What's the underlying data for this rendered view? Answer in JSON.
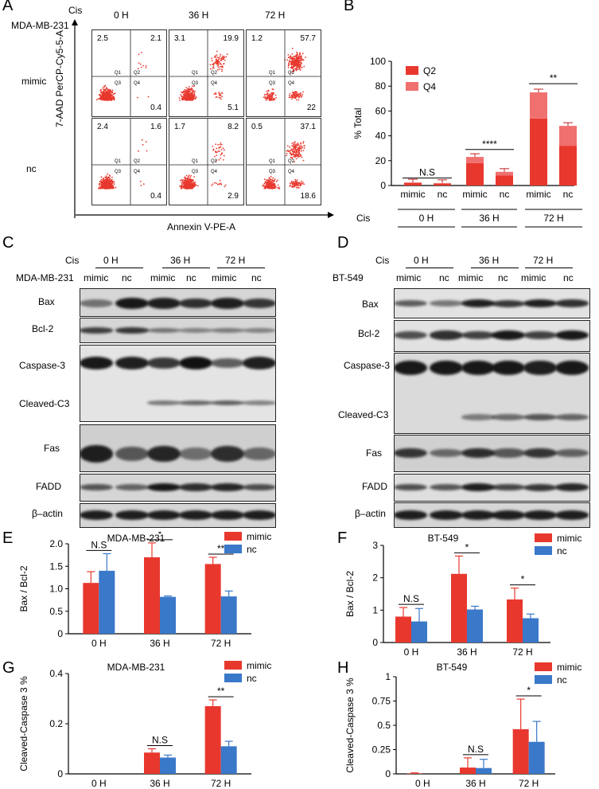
{
  "panelA": {
    "letter": "A",
    "cell_line": "MDA-MB-231",
    "cis_label": "Cis",
    "times": [
      "0 H",
      "36 H",
      "72 H"
    ],
    "rows": [
      "mimic",
      "nc"
    ],
    "y_axis_label": "7-AAD PerCP-Cy5-5-A",
    "x_axis_label": "Annexin V-PE-A",
    "quadrant_labels": [
      "Q1",
      "Q2",
      "Q3",
      "Q4"
    ],
    "quadrant_values": [
      [
        [
          "2.5",
          "2.1",
          "0.4"
        ],
        [
          "3.1",
          "19.9",
          "5.1"
        ],
        [
          "1.2",
          "57.7",
          "22"
        ]
      ],
      [
        [
          "2.4",
          "1.6",
          "0.4"
        ],
        [
          "1.7",
          "8.2",
          "2.9"
        ],
        [
          "0.5",
          "37.1",
          "18.6"
        ]
      ]
    ],
    "dot_color": "#e8382e"
  },
  "panelB": {
    "letter": "B",
    "chart_data": {
      "type": "bar",
      "stacked": true,
      "categories": [
        "mimic",
        "nc",
        "mimic",
        "nc",
        "mimic",
        "nc"
      ],
      "groups": [
        "0 H",
        "36 H",
        "72 H"
      ],
      "group_axis_label": "Cis",
      "ylabel": "% Total",
      "ylim": [
        0,
        100
      ],
      "yticks": [
        0,
        20,
        40,
        60,
        80,
        100
      ],
      "series": [
        {
          "name": "Q2",
          "values": [
            2,
            1.5,
            18,
            8,
            54,
            32
          ],
          "color": "#e8382e"
        },
        {
          "name": "Q4",
          "values": [
            0.5,
            0.5,
            5,
            3,
            21,
            16
          ],
          "color": "#f07070"
        }
      ],
      "significance": [
        "N.S",
        "****",
        "**"
      ]
    }
  },
  "panelC": {
    "letter": "C",
    "cis_label": "Cis",
    "cell_line": "MDA-MB-231",
    "times": [
      "0 H",
      "36 H",
      "72 H"
    ],
    "lanes": [
      "mimic",
      "nc",
      "mimic",
      "nc",
      "mimic",
      "nc"
    ],
    "blots": [
      "Bax",
      "Bcl-2",
      "Caspase-3",
      "Cleaved-C3",
      "Fas",
      "FADD",
      "β–actin"
    ]
  },
  "panelD": {
    "letter": "D",
    "cis_label": "Cis",
    "cell_line": "BT-549",
    "times": [
      "0 H",
      "36 H",
      "72 H"
    ],
    "lanes": [
      "mimic",
      "nc",
      "mimic",
      "nc",
      "mimic",
      "nc"
    ],
    "blots": [
      "Bax",
      "Bcl-2",
      "Caspase-3",
      "Cleaved-C3",
      "Fas",
      "FADD",
      "β–actin"
    ]
  },
  "panelE": {
    "letter": "E",
    "chart_data": {
      "type": "bar",
      "title": "MDA-MB-231",
      "categories": [
        "0 H",
        "36 H",
        "72 H"
      ],
      "ylabel": "Bax / Bcl-2",
      "ylim": [
        0,
        2.0
      ],
      "yticks": [
        "0",
        "0.5",
        "1.0",
        "1.5",
        "2.0"
      ],
      "series": [
        {
          "name": "mimic",
          "values": [
            1.13,
            1.7,
            1.55
          ],
          "errors": [
            0.25,
            0.32,
            0.15
          ],
          "color": "#e8382e"
        },
        {
          "name": "nc",
          "values": [
            1.4,
            0.82,
            0.83
          ],
          "errors": [
            0.38,
            0.02,
            0.12
          ],
          "color": "#3a78c9"
        }
      ],
      "significance": [
        "N.S",
        "*",
        "**"
      ]
    }
  },
  "panelF": {
    "letter": "F",
    "chart_data": {
      "type": "bar",
      "title": "BT-549",
      "categories": [
        "0 H",
        "36 H",
        "72 H"
      ],
      "ylabel": "Bax / Bcl-2",
      "ylim": [
        0,
        3
      ],
      "yticks": [
        "0",
        "1",
        "2",
        "3"
      ],
      "series": [
        {
          "name": "mimic",
          "values": [
            0.8,
            2.12,
            1.33
          ],
          "errors": [
            0.28,
            0.55,
            0.35
          ],
          "color": "#e8382e"
        },
        {
          "name": "nc",
          "values": [
            0.65,
            1.02,
            0.75
          ],
          "errors": [
            0.4,
            0.1,
            0.13
          ],
          "color": "#3a78c9"
        }
      ],
      "significance": [
        "N.S",
        "*",
        "*"
      ]
    }
  },
  "panelG": {
    "letter": "G",
    "chart_data": {
      "type": "bar",
      "title": "MDA-MB-231",
      "categories": [
        "0 H",
        "36 H",
        "72 H"
      ],
      "ylabel": "Cleaved-Caspase 3 %",
      "ylim": [
        0,
        0.4
      ],
      "yticks": [
        "0",
        "0.2",
        "0.4"
      ],
      "series": [
        {
          "name": "mimic",
          "values": [
            0,
            0.085,
            0.27
          ],
          "errors": [
            0,
            0.015,
            0.025
          ],
          "color": "#e8382e"
        },
        {
          "name": "nc",
          "values": [
            0,
            0.065,
            0.11
          ],
          "errors": [
            0,
            0.01,
            0.02
          ],
          "color": "#3a78c9"
        }
      ],
      "significance": [
        "",
        "N.S",
        "**"
      ]
    }
  },
  "panelH": {
    "letter": "H",
    "chart_data": {
      "type": "bar",
      "title": "BT-549",
      "categories": [
        "0 H",
        "36 H",
        "72 H"
      ],
      "ylabel": "Cleaved-Caspase 3 %",
      "ylim": [
        0,
        1
      ],
      "yticks": [
        "0",
        "0.25",
        "0.5",
        "0.75",
        "1"
      ],
      "series": [
        {
          "name": "mimic",
          "values": [
            0.005,
            0.065,
            0.46
          ],
          "errors": [
            0.005,
            0.1,
            0.31
          ],
          "color": "#e8382e"
        },
        {
          "name": "nc",
          "values": [
            0,
            0.06,
            0.33
          ],
          "errors": [
            0,
            0.09,
            0.21
          ],
          "color": "#3a78c9"
        }
      ],
      "significance": [
        "",
        "N.S",
        "*"
      ]
    }
  }
}
